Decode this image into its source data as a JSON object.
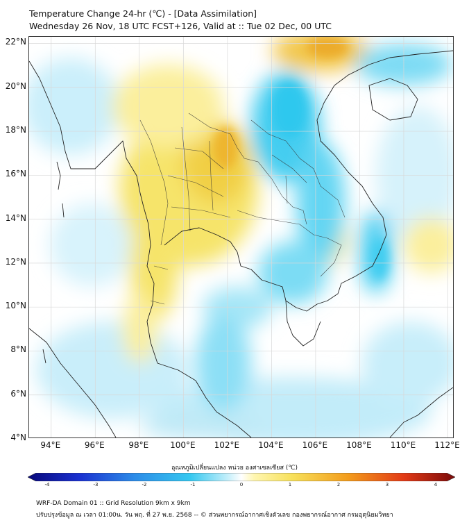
{
  "title": {
    "line1": "Temperature Change 24-hr (℃) - [Data Assimilation]",
    "line2": "Wednesday 26 Nov, 18 UTC FCST+126, Valid at :: Tue 02 Dec, 00 UTC"
  },
  "axes": {
    "lat_ticks": [
      "22°N",
      "20°N",
      "18°N",
      "16°N",
      "14°N",
      "12°N",
      "10°N",
      "8°N",
      "6°N",
      "4°N"
    ],
    "lon_ticks": [
      "94°E",
      "96°E",
      "98°E",
      "100°E",
      "102°E",
      "104°E",
      "106°E",
      "108°E",
      "110°E",
      "112°E"
    ],
    "lat_range": [
      4,
      22.3
    ],
    "lon_range": [
      93,
      112.3
    ]
  },
  "colorbar": {
    "label": "อุณหภูมิเปลี่ยนแปลง หน่วย องศาเซลเซียส (℃)",
    "ticks": [
      "-4",
      "-3",
      "-2",
      "-1",
      "0",
      "1",
      "2",
      "3",
      "4"
    ],
    "min": -4,
    "max": 4
  },
  "footer": {
    "line1": "WRF-DA Domain 01 :: Grid Resolution 9km x 9km",
    "line2": "ปรับปรุงข้อมูล ณ เวลา 01:00น. วัน พฤ. ที่ 27 พ.ย. 2568 -- © ส่วนพยากรณ์อากาศเชิงตัวเลข กองพยากรณ์อากาศ กรมอุตุนิยมวิทยา"
  },
  "colors": {
    "cold_strong": "#2ec8ee",
    "cold_light": "#b8ecfa",
    "neutral": "#ffffff",
    "warm_light": "#fff3a8",
    "warm": "#f5e060",
    "hot": "#f0b020",
    "coast": "#222222"
  }
}
